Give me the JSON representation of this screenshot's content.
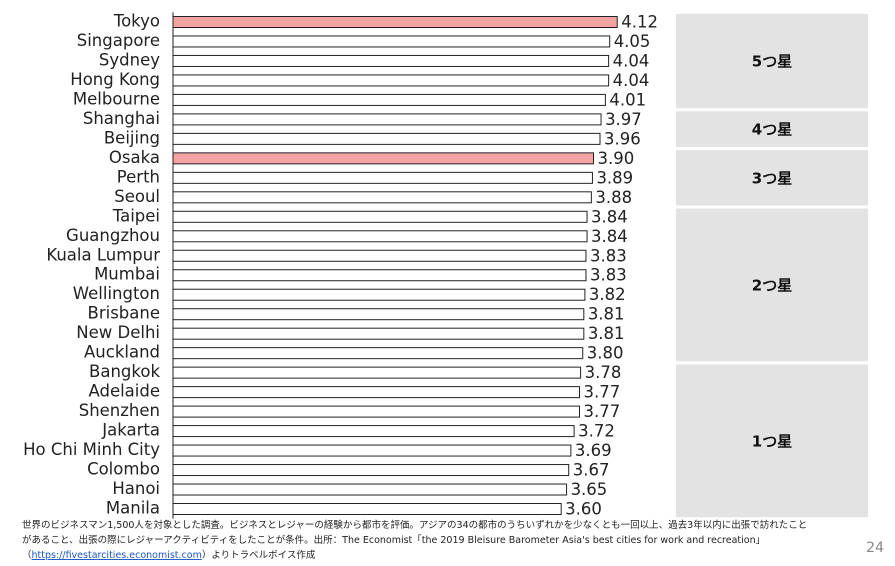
{
  "chart_data": {
    "type": "grouped-hbar",
    "xlim": [
      0,
      4.6
    ],
    "bar_color": "#ffffff",
    "groups": [
      {
        "label": "5つ星",
        "categories": [
          "Tokyo",
          "Singapore",
          "Sydney",
          "Hong Kong",
          "Melbourne"
        ],
        "values": [
          4.12,
          4.05,
          4.04,
          4.04,
          4.01
        ],
        "value_labels": [
          "4.12",
          "4.05",
          "4.04",
          "4.04",
          "4.01"
        ],
        "colors": [
          "#f4a3a3",
          "#ffffff",
          "#ffffff",
          "#ffffff",
          "#ffffff"
        ]
      },
      {
        "label": "4つ星",
        "categories": [
          "Shanghai",
          "Beijing"
        ],
        "values": [
          3.97,
          3.96
        ],
        "value_labels": [
          "3.97",
          "3.96"
        ],
        "colors": [
          "#ffffff",
          "#ffffff"
        ]
      },
      {
        "label": "3つ星",
        "categories": [
          "Osaka",
          "Perth",
          "Seoul"
        ],
        "values": [
          3.9,
          3.89,
          3.88
        ],
        "value_labels": [
          "3.90",
          "3.89",
          "3.88"
        ],
        "colors": [
          "#f4a3a3",
          "#ffffff",
          "#ffffff"
        ]
      },
      {
        "label": "2つ星",
        "categories": [
          "Taipei",
          "Guangzhou",
          "Kuala Lumpur",
          "Mumbai",
          "Wellington",
          "Brisbane",
          "New Delhi",
          "Auckland"
        ],
        "values": [
          3.84,
          3.84,
          3.83,
          3.83,
          3.82,
          3.81,
          3.81,
          3.8
        ],
        "value_labels": [
          "3.84",
          "3.84",
          "3.83",
          "3.83",
          "3.82",
          "3.81",
          "3.81",
          "3.80"
        ],
        "colors": [
          "#ffffff",
          "#ffffff",
          "#ffffff",
          "#ffffff",
          "#ffffff",
          "#ffffff",
          "#ffffff",
          "#ffffff"
        ]
      },
      {
        "label": "1つ星",
        "categories": [
          "Bangkok",
          "Adelaide",
          "Shenzhen",
          "Jakarta",
          "Ho Chi Minh City",
          "Colombo",
          "Hanoi",
          "Manila"
        ],
        "values": [
          3.78,
          3.77,
          3.77,
          3.72,
          3.69,
          3.67,
          3.65,
          3.6
        ],
        "value_labels": [
          "3.78",
          "3.77",
          "3.77",
          "3.72",
          "3.69",
          "3.67",
          "3.65",
          "3.60"
        ],
        "colors": [
          "#ffffff",
          "#ffffff",
          "#ffffff",
          "#ffffff",
          "#ffffff",
          "#ffffff",
          "#ffffff",
          "#ffffff"
        ]
      }
    ]
  },
  "footnote": {
    "line1": "世界のビジネスマン1,500人を対象とした調査。ビジネスとレジャーの経験から都市を評価。アジアの34の都市のうちいずれかを少なくとも一回以上、過去3年以内に出張で訪れたこと",
    "line2": "があること、出張の際にレジャーアクティビティをしたことが条件。出所：The Economist「the 2019 Bleisure Barometer Asia's best cities for work and recreation」",
    "line3_open": "（",
    "link": "https://fivestarcities.economist.com",
    "line3_close": "）よりトラベルボイス作成"
  },
  "page_number": "24"
}
